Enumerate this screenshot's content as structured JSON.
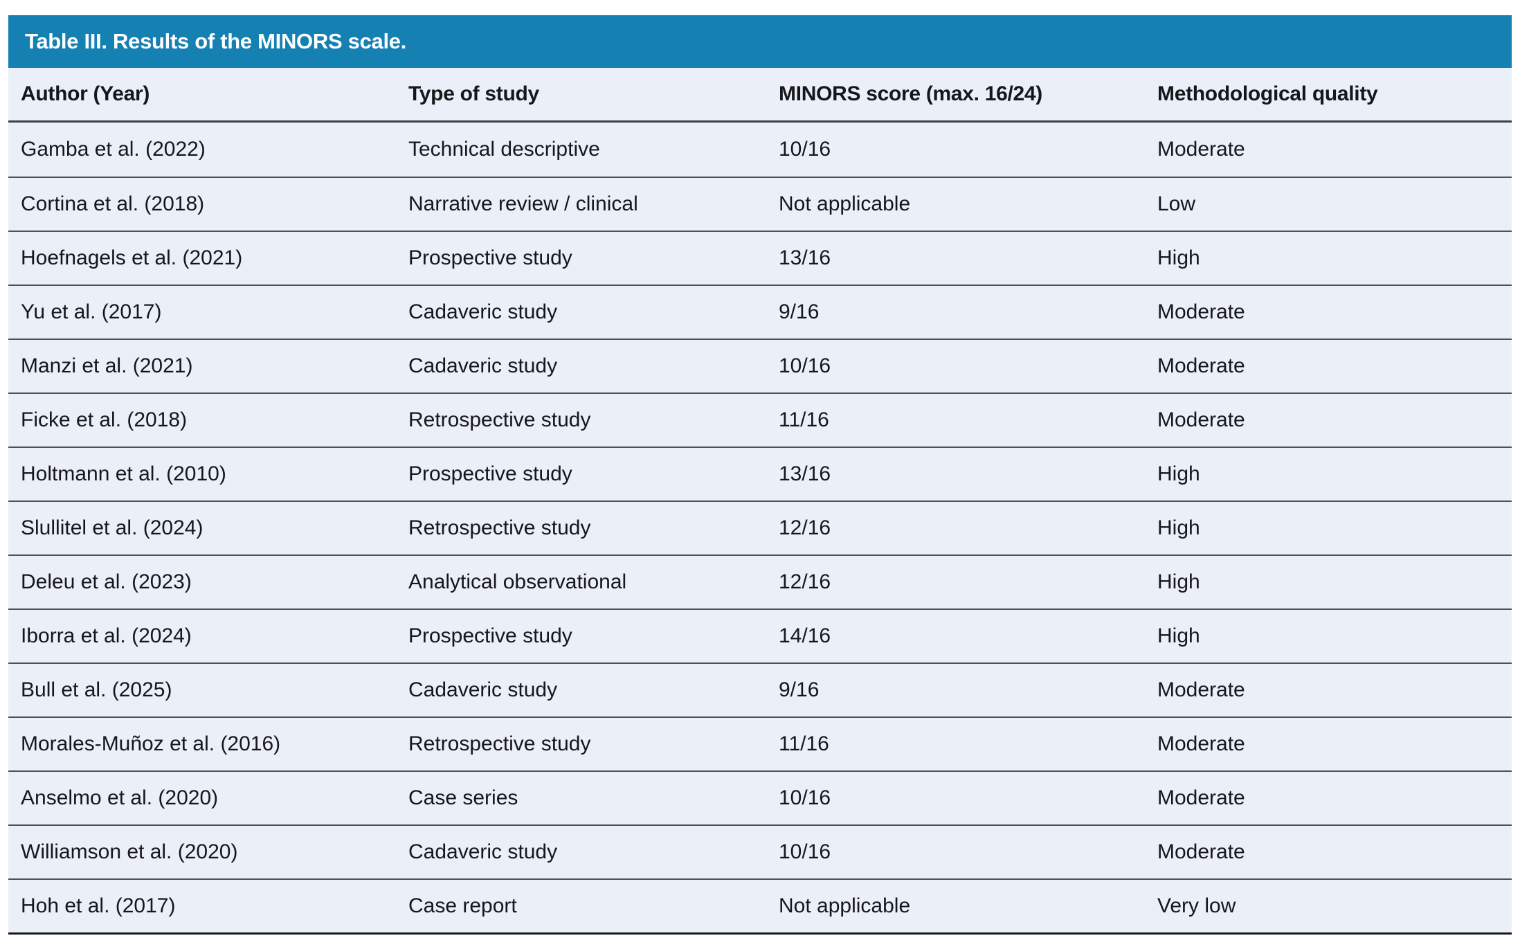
{
  "colors": {
    "title_bar": "#1580B2",
    "title_text": "#FFFFFF",
    "row_bg": "#EBEFF7",
    "divider": "#4D525A",
    "header_divider": "#3A3F45",
    "bottom_border": "#17191C",
    "body_text": "#16171A"
  },
  "table": {
    "title": "Table III. Results of the MINORS scale.",
    "columns": [
      "Author (Year)",
      "Type of study",
      "MINORS score (max. 16/24)",
      "Methodological quality"
    ],
    "rows": [
      {
        "author": "Gamba et al. (2022)",
        "type": "Technical descriptive",
        "score": "10/16",
        "quality": "Moderate"
      },
      {
        "author": "Cortina et al. (2018)",
        "type": "Narrative review / clinical",
        "score": "Not applicable",
        "quality": "Low"
      },
      {
        "author": "Hoefnagels et al. (2021)",
        "type": "Prospective study",
        "score": "13/16",
        "quality": "High"
      },
      {
        "author": "Yu et al. (2017)",
        "type": "Cadaveric study",
        "score": "9/16",
        "quality": "Moderate"
      },
      {
        "author": "Manzi et al. (2021)",
        "type": "Cadaveric study",
        "score": "10/16",
        "quality": "Moderate"
      },
      {
        "author": "Ficke et al. (2018)",
        "type": "Retrospective study",
        "score": "11/16",
        "quality": "Moderate"
      },
      {
        "author": "Holtmann et al. (2010)",
        "type": "Prospective study",
        "score": "13/16",
        "quality": "High"
      },
      {
        "author": "Slullitel et al. (2024)",
        "type": "Retrospective study",
        "score": "12/16",
        "quality": "High"
      },
      {
        "author": "Deleu et al. (2023)",
        "type": "Analytical observational",
        "score": "12/16",
        "quality": "High"
      },
      {
        "author": "Iborra et al. (2024)",
        "type": "Prospective study",
        "score": "14/16",
        "quality": "High"
      },
      {
        "author": "Bull et al. (2025)",
        "type": "Cadaveric study",
        "score": "9/16",
        "quality": "Moderate"
      },
      {
        "author": "Morales-Muñoz et al. (2016)",
        "type": "Retrospective study",
        "score": "11/16",
        "quality": "Moderate"
      },
      {
        "author": "Anselmo et al. (2020)",
        "type": "Case series",
        "score": "10/16",
        "quality": "Moderate"
      },
      {
        "author": "Williamson et al. (2020)",
        "type": "Cadaveric study",
        "score": "10/16",
        "quality": "Moderate"
      },
      {
        "author": "Hoh et al. (2017)",
        "type": "Case report",
        "score": "Not applicable",
        "quality": "Very low"
      }
    ]
  }
}
